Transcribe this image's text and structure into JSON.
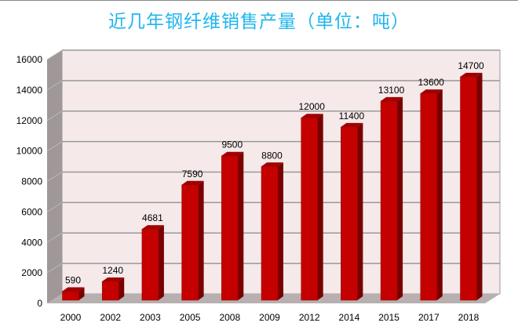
{
  "chart_data": {
    "type": "bar",
    "title": "近几年钢纤维销售产量（单位：吨）",
    "xlabel": "",
    "ylabel": "",
    "ylim": [
      0,
      16000
    ],
    "yticks": [
      0,
      2000,
      4000,
      6000,
      8000,
      10000,
      12000,
      14000,
      16000
    ],
    "grid": true,
    "categories": [
      "2000",
      "2002",
      "2003",
      "2005",
      "2008",
      "2009",
      "2012",
      "2014",
      "2015",
      "2017",
      "2018"
    ],
    "values": [
      590,
      1240,
      4681,
      7590,
      9500,
      8800,
      12000,
      11400,
      13100,
      13600,
      14700
    ],
    "colors": {
      "bar_front": "#c40000",
      "bar_side": "#7a0000",
      "bar_top": "#a00000",
      "wall": "#f5e9ea",
      "side_wall": "#a09898",
      "floor": "#b8b0b0",
      "grid": "#999999",
      "title": "#1fb6ee"
    }
  }
}
